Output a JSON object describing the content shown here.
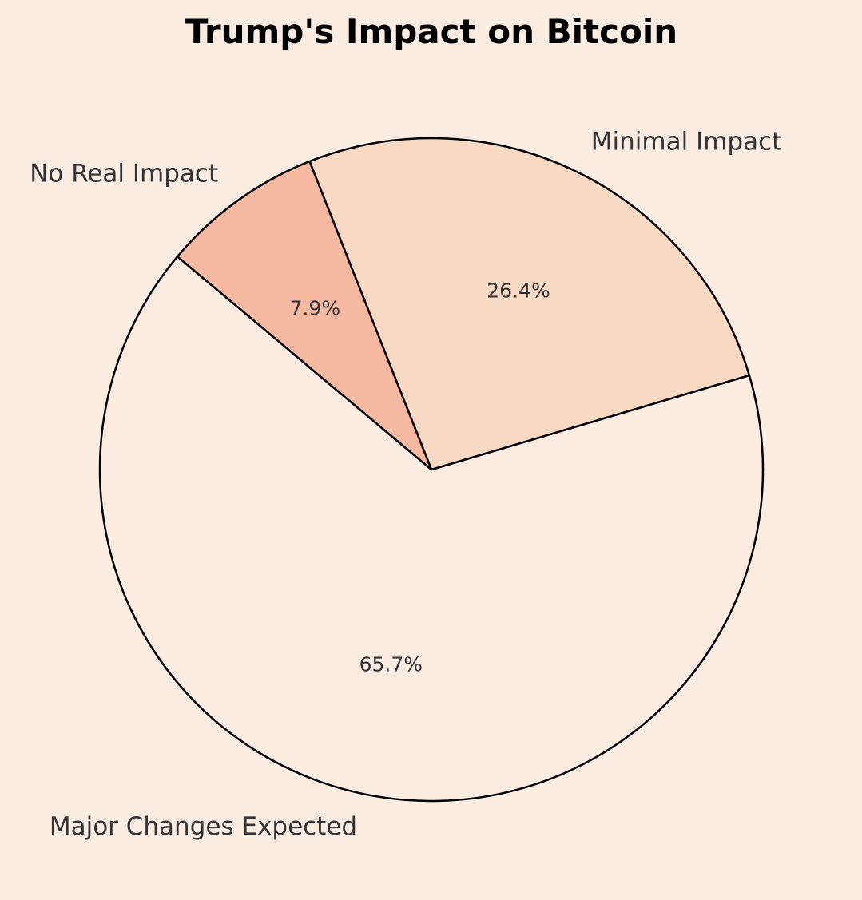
{
  "chart_data": {
    "type": "pie",
    "title": "Trump's Impact on Bitcoin",
    "categories": [
      "Major Changes Expected",
      "Minimal Impact",
      "No Real Impact"
    ],
    "values": [
      65.7,
      26.4,
      7.9
    ],
    "value_labels": [
      "65.7%",
      "26.4%",
      "7.9%"
    ],
    "colors": [
      "#FBEBE0",
      "#F8D9C4",
      "#F5B8A0"
    ],
    "edge_color": "#000000",
    "background": "#FAECE0",
    "legend": "none"
  }
}
